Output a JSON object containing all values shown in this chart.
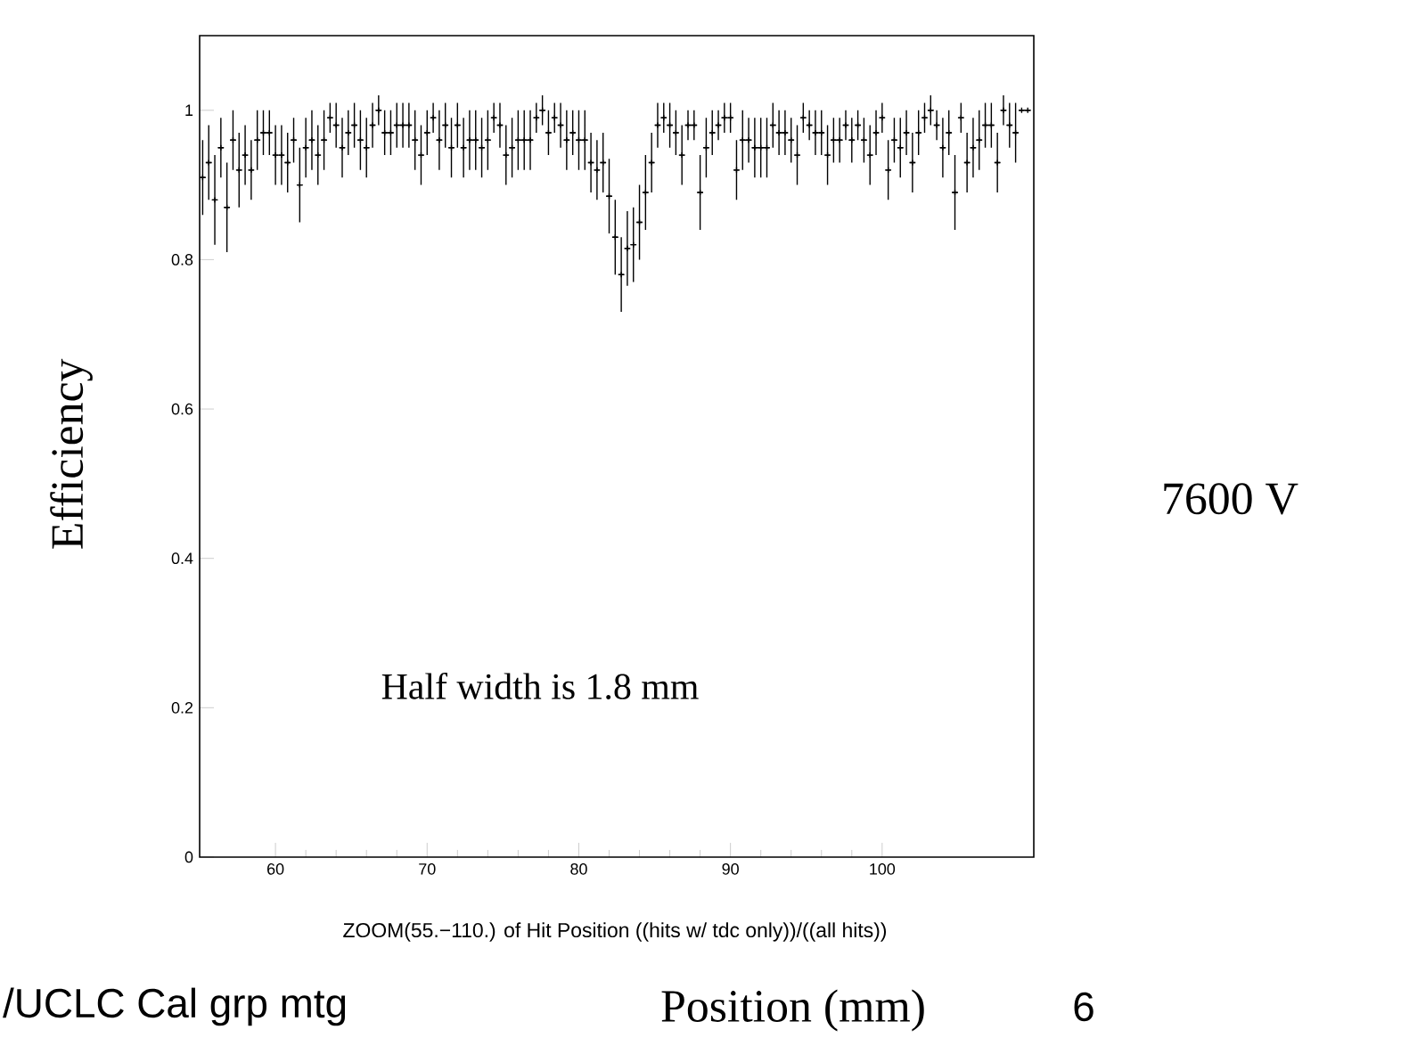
{
  "chart_data": {
    "type": "scatter",
    "xlabel": "Position (mm)",
    "ylabel": "Efficiency",
    "annotations": [
      "Half width is 1.8 mm",
      "ZOOM(55.−110.) of Hit Position ((hits w/ tdc only))/((all hits))",
      "7600 V",
      "/UCLC Cal grp mtg",
      "6"
    ],
    "xlim": [
      55,
      110
    ],
    "ylim": [
      0,
      1.1
    ],
    "xticks": [
      60,
      70,
      80,
      90,
      100
    ],
    "yticks": [
      0,
      0.2,
      0.4,
      0.6,
      0.8,
      1
    ],
    "marker": "cross",
    "color": "#000000",
    "x": [
      55.2,
      55.6,
      56,
      56.4,
      56.8,
      57.2,
      57.6,
      58,
      58.4,
      58.8,
      59.2,
      59.6,
      60,
      60.4,
      60.8,
      61.2,
      61.6,
      62,
      62.4,
      62.8,
      63.2,
      63.6,
      64,
      64.4,
      64.8,
      65.2,
      65.6,
      66,
      66.4,
      66.8,
      67.2,
      67.6,
      68,
      68.4,
      68.8,
      69.2,
      69.6,
      70,
      70.4,
      70.8,
      71.2,
      71.6,
      72,
      72.4,
      72.8,
      73.2,
      73.6,
      74,
      74.4,
      74.8,
      75.2,
      75.6,
      76,
      76.4,
      76.8,
      77.2,
      77.6,
      78,
      78.4,
      78.8,
      79.2,
      79.6,
      80,
      80.4,
      80.8,
      81.2,
      81.6,
      82,
      82.4,
      82.8,
      83.2,
      83.6,
      84,
      84.4,
      84.8,
      85.2,
      85.6,
      86,
      86.4,
      86.8,
      87.2,
      87.6,
      88,
      88.4,
      88.8,
      89.2,
      89.6,
      90,
      90.4,
      90.8,
      91.2,
      91.6,
      92,
      92.4,
      92.8,
      93.2,
      93.6,
      94,
      94.4,
      94.8,
      95.2,
      95.6,
      96,
      96.4,
      96.8,
      97.2,
      97.6,
      98,
      98.4,
      98.8,
      99.2,
      99.6,
      100,
      100.4,
      100.8,
      101.2,
      101.6,
      102,
      102.4,
      102.8,
      103.2,
      103.6,
      104,
      104.4,
      104.8,
      105.2,
      105.6,
      106,
      106.4,
      106.8,
      107.2,
      107.6,
      108,
      108.4,
      108.8,
      109.2,
      109.6
    ],
    "values": [
      0.91,
      0.93,
      0.88,
      0.95,
      0.87,
      0.96,
      0.92,
      0.94,
      0.92,
      0.96,
      0.97,
      0.97,
      0.94,
      0.94,
      0.93,
      0.96,
      0.9,
      0.95,
      0.96,
      0.94,
      0.96,
      0.99,
      0.98,
      0.95,
      0.97,
      0.98,
      0.96,
      0.95,
      0.98,
      1.0,
      0.97,
      0.97,
      0.98,
      0.98,
      0.98,
      0.96,
      0.94,
      0.97,
      0.99,
      0.96,
      0.98,
      0.95,
      0.98,
      0.95,
      0.96,
      0.96,
      0.95,
      0.96,
      0.99,
      0.98,
      0.94,
      0.95,
      0.96,
      0.96,
      0.96,
      0.99,
      1.0,
      0.97,
      0.99,
      0.98,
      0.96,
      0.97,
      0.96,
      0.96,
      0.93,
      0.92,
      0.93,
      0.885,
      0.83,
      0.78,
      0.815,
      0.82,
      0.85,
      0.89,
      0.93,
      0.98,
      0.99,
      0.98,
      0.97,
      0.94,
      0.98,
      0.98,
      0.89,
      0.95,
      0.97,
      0.98,
      0.99,
      0.99,
      0.92,
      0.96,
      0.96,
      0.95,
      0.95,
      0.95,
      0.98,
      0.97,
      0.97,
      0.96,
      0.94,
      0.99,
      0.98,
      0.97,
      0.97,
      0.94,
      0.96,
      0.96,
      0.98,
      0.96,
      0.98,
      0.96,
      0.94,
      0.97,
      0.99,
      0.92,
      0.96,
      0.95,
      0.97,
      0.93,
      0.97,
      0.99,
      1.0,
      0.98,
      0.95,
      0.97,
      0.89,
      0.99,
      0.93,
      0.95,
      0.96,
      0.98,
      0.98,
      0.93,
      1.0,
      0.98,
      0.97,
      1.0,
      1.0
    ],
    "errors": [
      0.05,
      0.05,
      0.06,
      0.04,
      0.06,
      0.04,
      0.05,
      0.04,
      0.04,
      0.04,
      0.03,
      0.03,
      0.04,
      0.04,
      0.04,
      0.03,
      0.05,
      0.04,
      0.04,
      0.04,
      0.04,
      0.02,
      0.03,
      0.04,
      0.03,
      0.03,
      0.04,
      0.04,
      0.03,
      0.02,
      0.03,
      0.03,
      0.03,
      0.03,
      0.03,
      0.04,
      0.04,
      0.03,
      0.02,
      0.04,
      0.03,
      0.04,
      0.03,
      0.04,
      0.04,
      0.04,
      0.04,
      0.04,
      0.02,
      0.03,
      0.04,
      0.04,
      0.04,
      0.04,
      0.04,
      0.02,
      0.02,
      0.03,
      0.02,
      0.03,
      0.04,
      0.03,
      0.04,
      0.04,
      0.04,
      0.04,
      0.04,
      0.05,
      0.05,
      0.05,
      0.05,
      0.05,
      0.05,
      0.05,
      0.04,
      0.03,
      0.02,
      0.03,
      0.03,
      0.04,
      0.02,
      0.02,
      0.05,
      0.04,
      0.03,
      0.02,
      0.02,
      0.02,
      0.04,
      0.04,
      0.03,
      0.04,
      0.04,
      0.04,
      0.03,
      0.03,
      0.03,
      0.03,
      0.04,
      0.02,
      0.02,
      0.03,
      0.03,
      0.04,
      0.03,
      0.03,
      0.02,
      0.03,
      0.02,
      0.03,
      0.04,
      0.03,
      0.02,
      0.04,
      0.03,
      0.04,
      0.03,
      0.04,
      0.03,
      0.02,
      0.02,
      0.02,
      0.04,
      0.03,
      0.05,
      0.02,
      0.04,
      0.04,
      0.04,
      0.03,
      0.03,
      0.04,
      0.02,
      0.03,
      0.04,
      null,
      null
    ],
    "xerrors": [
      0.2,
      0.2,
      0.2,
      0.2,
      0.2,
      0.2,
      0.2,
      0.2,
      0.2,
      0.2,
      0.2,
      0.2,
      0.2,
      0.2,
      0.2,
      0.2,
      0.2,
      0.2,
      0.2,
      0.2,
      0.2,
      0.2,
      0.2,
      0.2,
      0.2,
      0.2,
      0.2,
      0.2,
      0.2,
      0.2,
      0.2,
      0.2,
      0.2,
      0.2,
      0.2,
      0.2,
      0.2,
      0.2,
      0.2,
      0.2,
      0.2,
      0.2,
      0.2,
      0.2,
      0.2,
      0.2,
      0.2,
      0.2,
      0.2,
      0.2,
      0.2,
      0.2,
      0.2,
      0.2,
      0.2,
      0.2,
      0.2,
      0.2,
      0.2,
      0.2,
      0.2,
      0.2,
      0.2,
      0.2,
      0.2,
      0.2,
      0.2,
      0.2,
      0.2,
      0.2,
      0.2,
      0.2,
      0.2,
      0.2,
      0.2,
      0.2,
      0.2,
      0.2,
      0.2,
      0.2,
      0.2,
      0.2,
      0.2,
      0.2,
      0.2,
      0.2,
      0.2,
      0.2,
      0.2,
      0.2,
      0.2,
      0.2,
      0.2,
      0.2,
      0.2,
      0.2,
      0.2,
      0.2,
      0.2,
      0.2,
      0.2,
      0.2,
      0.2,
      0.2,
      0.2,
      0.2,
      0.2,
      0.2,
      0.2,
      0.2,
      0.2,
      0.2,
      0.2,
      0.2,
      0.2,
      0.2,
      0.2,
      0.2,
      0.2,
      0.2,
      0.2,
      0.2,
      0.2,
      0.2,
      0.2,
      0.2,
      0.2,
      0.2,
      0.2,
      0.2,
      0.2,
      0.2,
      0.2,
      0.2,
      0.2,
      0.2,
      0.2
    ]
  }
}
